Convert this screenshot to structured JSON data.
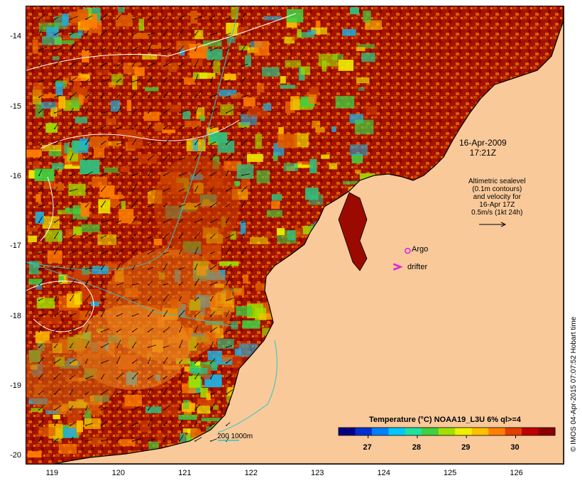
{
  "title_overlay": {
    "date": "16-Apr-2009",
    "time": "17:21Z"
  },
  "altimetry_note": {
    "line1": "Altimetric sealevel",
    "line2": "(0.1m contours)",
    "line3": "and velocity for",
    "line4": "16-Apr 17Z",
    "line5": "0.5m/s (1kt 24h)"
  },
  "legend": {
    "argo": "Argo",
    "drifter": "drifter",
    "argo_color": "#e020e0",
    "drifter_color": "#e020e0"
  },
  "scale_bar": {
    "label": "200  1000m",
    "color": "#2fc4c4"
  },
  "colorbar": {
    "title": "Temperature (°C) NOAA19_L3U 6% ql>=4",
    "ticks": [
      "27",
      "28",
      "29",
      "30"
    ],
    "tick_values": [
      27,
      28,
      29,
      30
    ],
    "range": [
      26.4,
      30.8
    ],
    "colors": [
      "#000080",
      "#0030d0",
      "#0080ff",
      "#00c8ff",
      "#20e0a0",
      "#40d040",
      "#a0e000",
      "#f0f000",
      "#ffc000",
      "#ff8000",
      "#e04000",
      "#c00000",
      "#8b0000"
    ]
  },
  "axes": {
    "x_ticks": [
      "119",
      "120",
      "121",
      "122",
      "123",
      "124",
      "125",
      "126"
    ],
    "x_values": [
      119,
      120,
      121,
      122,
      123,
      124,
      125,
      126
    ],
    "y_ticks": [
      "-14",
      "-15",
      "-16",
      "-17",
      "-18",
      "-19",
      "-20"
    ],
    "y_values": [
      -14,
      -15,
      -16,
      -17,
      -18,
      -19,
      -20
    ],
    "lon_range": [
      118.6,
      126.7
    ],
    "lat_range": [
      -13.55,
      -20.1
    ]
  },
  "credit": "© IMOS 04-Apr-2015 07:07:52 Hobart time",
  "colors": {
    "land": "#f9c99a",
    "coast": "#000000",
    "contour_sealevel": "#ffffff",
    "contour_bathy": "#2fc4c4",
    "vector": "#000000"
  },
  "map_features": {
    "argo_float": {
      "lon": 124.35,
      "lat": -17.05
    },
    "drifter": {
      "lon": 124.2,
      "lat": -17.28
    }
  }
}
